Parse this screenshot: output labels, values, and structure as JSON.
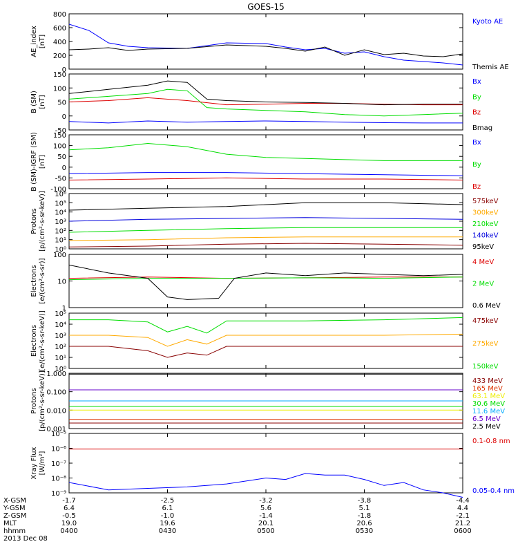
{
  "title": "GOES-15",
  "chart_data": [
    {
      "type": "line",
      "ylabel": "AE_index\n[nT]",
      "yscale": "linear",
      "ylim": [
        0,
        800
      ],
      "yticks": [
        "0",
        "200",
        "400",
        "600",
        "800"
      ],
      "series": [
        {
          "name": "Kyoto AE",
          "color": "#0000ff",
          "x": [
            0,
            0.05,
            0.1,
            0.15,
            0.2,
            0.3,
            0.4,
            0.5,
            0.55,
            0.6,
            0.65,
            0.7,
            0.75,
            0.8,
            0.85,
            0.9,
            0.95,
            1.0
          ],
          "values": [
            650,
            560,
            380,
            330,
            310,
            300,
            380,
            370,
            320,
            280,
            300,
            230,
            250,
            180,
            130,
            110,
            90,
            60
          ]
        },
        {
          "name": "Themis AE",
          "color": "#000000",
          "x": [
            0,
            0.05,
            0.1,
            0.15,
            0.2,
            0.3,
            0.4,
            0.5,
            0.55,
            0.6,
            0.65,
            0.7,
            0.75,
            0.8,
            0.85,
            0.9,
            0.95,
            1.0
          ],
          "values": [
            280,
            290,
            310,
            270,
            290,
            300,
            350,
            330,
            300,
            260,
            320,
            200,
            280,
            210,
            230,
            190,
            180,
            220
          ]
        }
      ]
    },
    {
      "type": "line",
      "ylabel": "B (SM)\n[nT]",
      "yscale": "linear",
      "ylim": [
        -50,
        150
      ],
      "yticks": [
        "-50",
        "0",
        "50",
        "100",
        "150"
      ],
      "series": [
        {
          "name": "Bx",
          "color": "#0000ff",
          "x": [
            0,
            0.1,
            0.2,
            0.3,
            0.4,
            0.5,
            0.6,
            0.7,
            0.8,
            0.9,
            1.0
          ],
          "values": [
            -20,
            -25,
            -18,
            -22,
            -20,
            -18,
            -20,
            -22,
            -24,
            -25,
            -25
          ]
        },
        {
          "name": "By",
          "color": "#00dd00",
          "x": [
            0,
            0.1,
            0.2,
            0.25,
            0.3,
            0.35,
            0.4,
            0.5,
            0.6,
            0.7,
            0.8,
            0.9,
            1.0
          ],
          "values": [
            60,
            70,
            80,
            95,
            90,
            30,
            25,
            20,
            15,
            5,
            0,
            5,
            10
          ]
        },
        {
          "name": "Bz",
          "color": "#dd0000",
          "x": [
            0,
            0.1,
            0.2,
            0.3,
            0.4,
            0.5,
            0.6,
            0.7,
            0.8,
            0.9,
            1.0
          ],
          "values": [
            50,
            55,
            65,
            55,
            40,
            42,
            45,
            45,
            42,
            40,
            40
          ]
        },
        {
          "name": "Bmag",
          "color": "#000000",
          "x": [
            0,
            0.1,
            0.2,
            0.25,
            0.3,
            0.35,
            0.4,
            0.5,
            0.6,
            0.7,
            0.8,
            0.9,
            1.0
          ],
          "values": [
            80,
            95,
            110,
            125,
            120,
            60,
            55,
            50,
            48,
            45,
            40,
            42,
            42
          ]
        }
      ]
    },
    {
      "type": "line",
      "ylabel": "B (SM)-IGRF (SM)\n[nT]",
      "yscale": "linear",
      "ylim": [
        -100,
        150
      ],
      "yticks": [
        "-100",
        "-50",
        "0",
        "50",
        "100",
        "150"
      ],
      "series": [
        {
          "name": "Bx",
          "color": "#0000ff",
          "x": [
            0,
            0.2,
            0.4,
            0.6,
            0.8,
            1.0
          ],
          "values": [
            -30,
            -25,
            -25,
            -30,
            -35,
            -40
          ]
        },
        {
          "name": "By",
          "color": "#00dd00",
          "x": [
            0,
            0.1,
            0.2,
            0.3,
            0.4,
            0.5,
            0.6,
            0.7,
            0.8,
            0.9,
            1.0
          ],
          "values": [
            80,
            90,
            110,
            95,
            60,
            45,
            40,
            35,
            30,
            30,
            30
          ]
        },
        {
          "name": "Bz",
          "color": "#dd0000",
          "x": [
            0,
            0.2,
            0.4,
            0.6,
            0.8,
            1.0
          ],
          "values": [
            -60,
            -55,
            -50,
            -55,
            -55,
            -60
          ]
        }
      ]
    },
    {
      "type": "line",
      "ylabel": "Protons\n[p/(cm²-s-sr-keV)]",
      "yscale": "log",
      "ylim": [
        0,
        6
      ],
      "yticks": [
        "10⁰",
        "10¹",
        "10²",
        "10³",
        "10⁴",
        "10⁵",
        "10⁶"
      ],
      "series": [
        {
          "name": "575keV",
          "color": "#880000",
          "x": [
            0,
            0.2,
            0.4,
            0.6,
            0.8,
            1.0
          ],
          "values": [
            0.2,
            0.3,
            0.5,
            0.6,
            0.5,
            0.4
          ]
        },
        {
          "name": "300keV",
          "color": "#ffaa00",
          "x": [
            0,
            0.2,
            0.4,
            0.6,
            0.8,
            1.0
          ],
          "values": [
            0.9,
            1.0,
            1.2,
            1.3,
            1.3,
            1.3
          ]
        },
        {
          "name": "210keV",
          "color": "#00dd00",
          "x": [
            0,
            0.2,
            0.4,
            0.6,
            0.8,
            1.0
          ],
          "values": [
            1.8,
            2.0,
            2.2,
            2.3,
            2.3,
            2.3
          ]
        },
        {
          "name": "140keV",
          "color": "#0000dd",
          "x": [
            0,
            0.2,
            0.4,
            0.6,
            0.8,
            1.0
          ],
          "values": [
            3.0,
            3.2,
            3.3,
            3.4,
            3.3,
            3.2
          ]
        },
        {
          "name": "95keV",
          "color": "#000000",
          "x": [
            0,
            0.2,
            0.4,
            0.6,
            0.8,
            1.0
          ],
          "values": [
            4.2,
            4.4,
            4.6,
            5.0,
            5.0,
            4.8
          ]
        }
      ]
    },
    {
      "type": "line",
      "ylabel": "Electrons\n[e/(cm²-s-sr)]",
      "yscale": "log",
      "ylim": [
        0,
        2
      ],
      "yticks": [
        "1",
        "10",
        "100"
      ],
      "series": [
        {
          "name": "4 MeV",
          "color": "#dd0000",
          "x": [
            0,
            0.2,
            0.4,
            0.6,
            0.8,
            1.0
          ],
          "values": [
            1.1,
            1.15,
            1.1,
            1.12,
            1.15,
            1.15
          ]
        },
        {
          "name": "2 MeV",
          "color": "#00dd00",
          "x": [
            0,
            0.2,
            0.4,
            0.6,
            0.8,
            1.0
          ],
          "values": [
            1.05,
            1.1,
            1.1,
            1.12,
            1.1,
            1.15
          ]
        },
        {
          "name": "0.6 MeV",
          "color": "#000000",
          "x": [
            0,
            0.1,
            0.2,
            0.25,
            0.3,
            0.38,
            0.42,
            0.5,
            0.6,
            0.7,
            0.8,
            0.9,
            1.0
          ],
          "values": [
            1.6,
            1.3,
            1.1,
            0.4,
            0.3,
            0.35,
            1.1,
            1.3,
            1.2,
            1.3,
            1.25,
            1.2,
            1.25
          ]
        }
      ]
    },
    {
      "type": "line",
      "ylabel": "Electrons\n[e/(cm²-s-sr-keV)]",
      "yscale": "log",
      "ylim": [
        0,
        5
      ],
      "yticks": [
        "10⁰",
        "10¹",
        "10²",
        "10³",
        "10⁴",
        "10⁵"
      ],
      "series": [
        {
          "name": "475keV",
          "color": "#880000",
          "x": [
            0,
            0.1,
            0.2,
            0.25,
            0.3,
            0.35,
            0.4,
            0.5,
            0.6,
            0.8,
            1.0
          ],
          "values": [
            2.0,
            2.0,
            1.6,
            1.0,
            1.4,
            1.2,
            2.0,
            2.0,
            2.0,
            2.0,
            2.0
          ]
        },
        {
          "name": "275keV",
          "color": "#ffaa00",
          "x": [
            0,
            0.1,
            0.2,
            0.25,
            0.3,
            0.35,
            0.4,
            0.5,
            0.6,
            0.8,
            1.0
          ],
          "values": [
            3.0,
            3.0,
            2.8,
            2.0,
            2.6,
            2.2,
            3.0,
            3.0,
            3.0,
            3.0,
            3.1
          ]
        },
        {
          "name": "150keV",
          "color": "#00dd00",
          "x": [
            0,
            0.1,
            0.2,
            0.25,
            0.3,
            0.35,
            0.4,
            0.5,
            0.6,
            0.8,
            1.0
          ],
          "values": [
            4.4,
            4.4,
            4.2,
            3.3,
            3.8,
            3.2,
            4.3,
            4.3,
            4.3,
            4.4,
            4.6
          ]
        }
      ]
    },
    {
      "type": "line",
      "ylabel": "Protons\n[p/(cm²-s-sr-keV)]",
      "yscale": "log",
      "ylim": [
        -3,
        0
      ],
      "yticks": [
        "0.001",
        "0.010",
        "0.100",
        "1.000"
      ],
      "series": [
        {
          "name": "433 MeV",
          "color": "#880000",
          "x": [
            0,
            1.0
          ],
          "values": [
            -2.7,
            -2.7
          ]
        },
        {
          "name": "165 MeV",
          "color": "#dd3300",
          "x": [
            0,
            1.0
          ],
          "values": [
            -2.5,
            -2.5
          ]
        },
        {
          "name": "63.1 MeV",
          "color": "#eeee00",
          "x": [
            0,
            1.0
          ],
          "values": [
            -2.0,
            -2.0
          ]
        },
        {
          "name": "30.6 MeV",
          "color": "#00dd00",
          "x": [
            0,
            1.0
          ],
          "values": [
            -1.8,
            -1.8
          ]
        },
        {
          "name": "11.6 MeV",
          "color": "#00aaff",
          "x": [
            0,
            1.0
          ],
          "values": [
            -1.5,
            -1.5
          ]
        },
        {
          "name": "6.5 MeV",
          "color": "#6600cc",
          "x": [
            0,
            1.0
          ],
          "values": [
            -0.9,
            -0.9
          ]
        },
        {
          "name": "2.5 MeV",
          "color": "#000000",
          "x": [
            0,
            1.0
          ],
          "values": [
            -0.05,
            -0.05
          ]
        }
      ]
    },
    {
      "type": "line",
      "ylabel": "Xray Flux\n[W/m²]",
      "yscale": "log",
      "ylim": [
        -9,
        -5
      ],
      "yticks": [
        "10⁻⁹",
        "10⁻⁸",
        "10⁻⁷",
        "10⁻⁶",
        "10⁻⁵"
      ],
      "series": [
        {
          "name": "0.1-0.8 nm",
          "color": "#dd0000",
          "x": [
            0,
            1.0
          ],
          "values": [
            -6.05,
            -6.05
          ]
        },
        {
          "name": "0.05-0.4 nm",
          "color": "#0000ff",
          "x": [
            0,
            0.1,
            0.2,
            0.3,
            0.4,
            0.5,
            0.55,
            0.6,
            0.65,
            0.7,
            0.75,
            0.8,
            0.85,
            0.9,
            0.95,
            1.0
          ],
          "values": [
            -8.3,
            -8.8,
            -8.7,
            -8.6,
            -8.4,
            -8.0,
            -8.1,
            -7.7,
            -7.8,
            -7.8,
            -8.1,
            -8.5,
            -8.3,
            -8.8,
            -9.0,
            -9.3
          ]
        }
      ]
    }
  ],
  "xaxis": {
    "rows": [
      {
        "label": "X-GSM",
        "values": [
          "-1.7",
          "-2.5",
          "-3.2",
          "-3.8",
          "-4.4"
        ]
      },
      {
        "label": "Y-GSM",
        "values": [
          "6.4",
          "6.1",
          "5.6",
          "5.1",
          "4.4"
        ]
      },
      {
        "label": "Z-GSM",
        "values": [
          "-0.5",
          "-1.0",
          "-1.4",
          "-1.8",
          "-2.1"
        ]
      },
      {
        "label": "MLT",
        "values": [
          "19.0",
          "19.6",
          "20.1",
          "20.6",
          "21.2"
        ]
      },
      {
        "label": "hhmm",
        "values": [
          "0400",
          "0430",
          "0500",
          "0530",
          "0600"
        ]
      }
    ],
    "date": "2013 Dec 08"
  }
}
